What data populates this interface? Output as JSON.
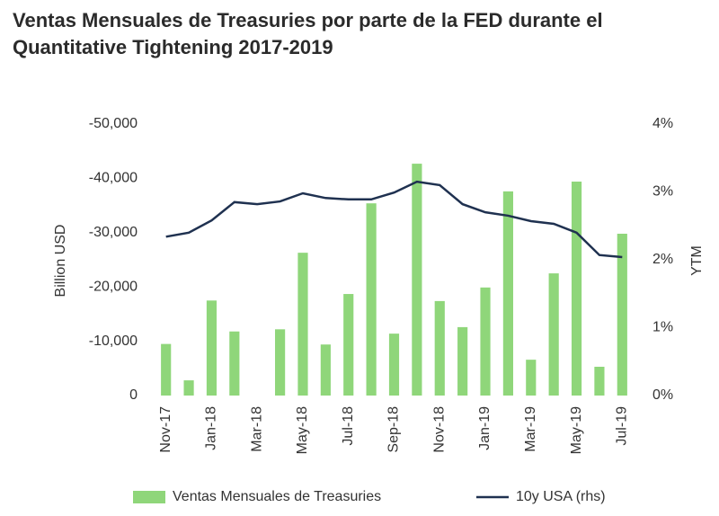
{
  "chart_data": {
    "type": "bar",
    "title": "Ventas Mensuales de Treasuries por parte de la FED durante el Quantitative Tightening 2017-2019",
    "y_label": "Billion USD",
    "y2_label": "YTM",
    "categories": [
      "Nov-17",
      null,
      "Jan-18",
      null,
      "Mar-18",
      null,
      "May-18",
      null,
      "Jul-18",
      null,
      "Sep-18",
      null,
      "Nov-18",
      null,
      "Jan-19",
      null,
      "Mar-19",
      null,
      "May-19",
      null,
      "Jul-19"
    ],
    "series": [
      {
        "name": "Ventas Mensuales de Treasuries",
        "type": "bar",
        "color": "#8fd67a",
        "values": [
          -9500,
          -2800,
          -17500,
          -11800,
          0,
          -12200,
          -26300,
          -9400,
          -18700,
          -35400,
          -11400,
          -42700,
          -17400,
          -12600,
          -19900,
          -37600,
          -6600,
          -22500,
          -39400,
          -5300,
          -29800
        ]
      },
      {
        "name": "10y USA (rhs)",
        "type": "line",
        "axis": "y2",
        "color": "#1f3150",
        "values": [
          2.34,
          2.4,
          2.58,
          2.85,
          2.82,
          2.86,
          2.98,
          2.91,
          2.89,
          2.89,
          2.99,
          3.15,
          3.1,
          2.82,
          2.7,
          2.65,
          2.57,
          2.53,
          2.4,
          2.07,
          2.04
        ]
      }
    ],
    "ylim": [
      0,
      -50000
    ],
    "yticks": [
      0,
      {
        "value": -10000,
        "label": "-10,000"
      },
      {
        "value": -20000,
        "label": "-20,000"
      },
      {
        "value": -30000,
        "label": "-30,000"
      },
      {
        "value": -40000,
        "label": "-40,000"
      },
      {
        "value": -50000,
        "label": "-50,000"
      }
    ],
    "y2lim": [
      0,
      4
    ],
    "y2ticks": [
      {
        "value": 0,
        "label": "0%"
      },
      {
        "value": 1,
        "label": "1%"
      },
      {
        "value": 2,
        "label": "2%"
      },
      {
        "value": 3,
        "label": "3%"
      },
      {
        "value": 4,
        "label": "4%"
      }
    ],
    "grid": false,
    "legend": "bottom"
  }
}
